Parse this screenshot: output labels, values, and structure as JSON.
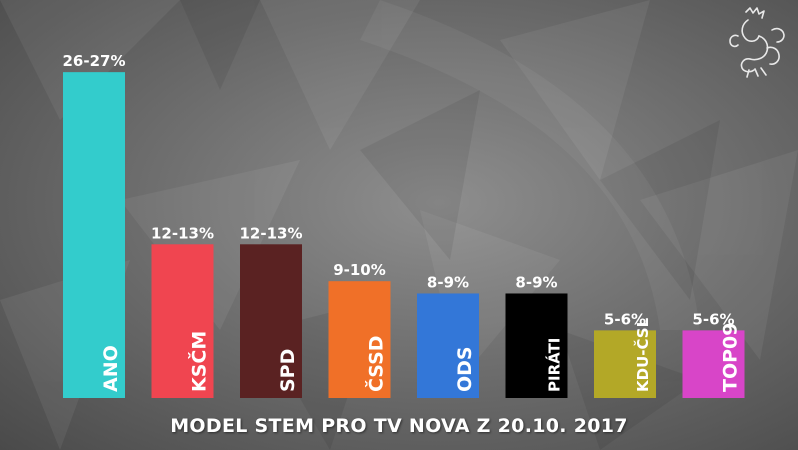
{
  "chart_data": {
    "type": "bar",
    "title": "MODEL STEM PRO TV NOVA Z 20.10. 2017",
    "xlabel": "",
    "ylabel": "",
    "ylim": [
      0,
      27
    ],
    "grid": false,
    "legend": "none",
    "categories": [
      "ANO",
      "KSČM",
      "SPD",
      "ČSSD",
      "ODS",
      "PIRÁTI",
      "KDU-ČSL",
      "TOP09"
    ],
    "value_labels": [
      "26-27%",
      "12-13%",
      "12-13%",
      "9-10%",
      "8-9%",
      "8-9%",
      "5-6%",
      "5-6%"
    ],
    "values": [
      26.5,
      12.5,
      12.5,
      9.5,
      8.5,
      8.5,
      5.5,
      5.5
    ],
    "colors": [
      "#33cccc",
      "#f04550",
      "#5a2222",
      "#f07028",
      "#3377d8",
      "#000000",
      "#b3a827",
      "#d845c8"
    ]
  }
}
